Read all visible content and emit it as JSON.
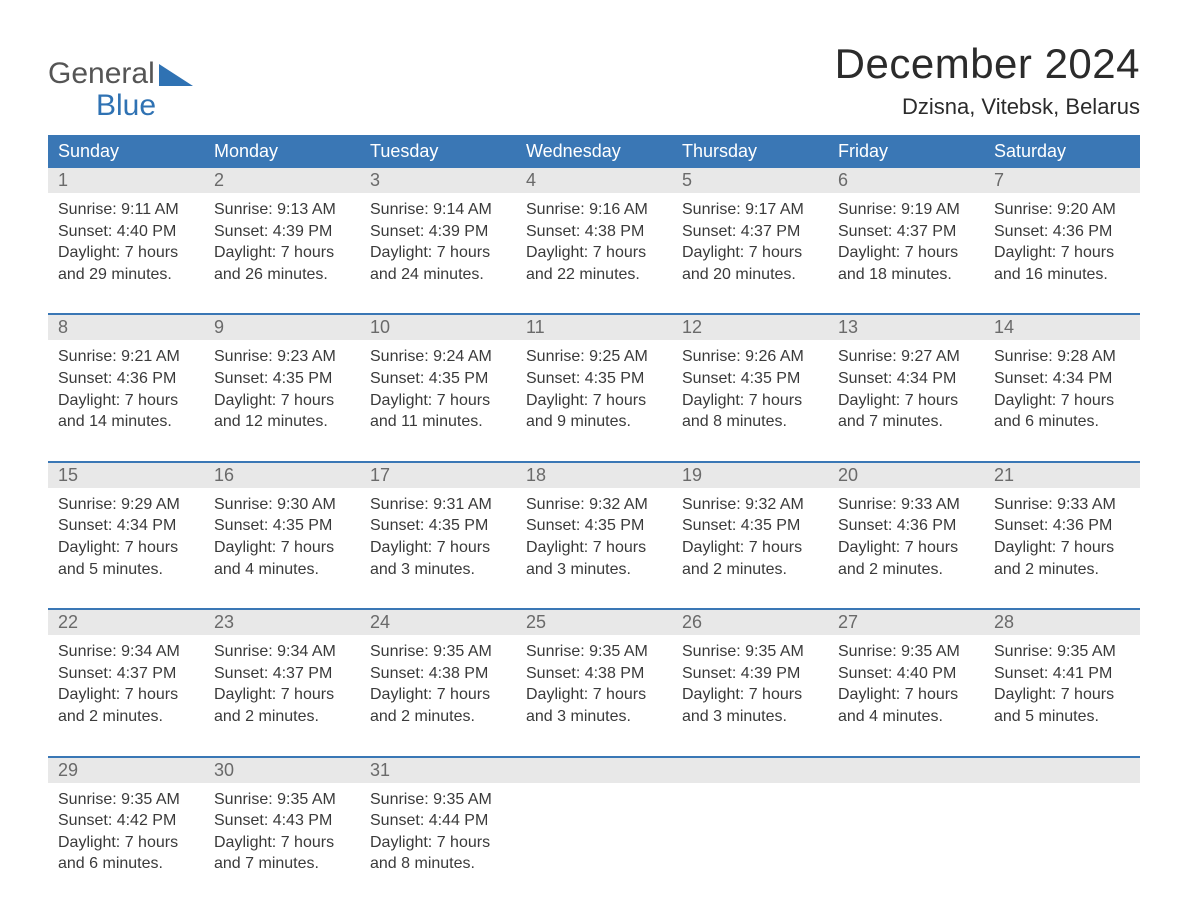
{
  "logo": {
    "line1": "General",
    "line2": "Blue"
  },
  "title": "December 2024",
  "location": "Dzisna, Vitebsk, Belarus",
  "colors": {
    "header_bg": "#3a77b5",
    "header_text": "#ffffff",
    "daynum_bg": "#e8e8e8",
    "daynum_text": "#6a6a6a",
    "body_text": "#3a3a3a",
    "rule": "#3a77b5",
    "logo_blue": "#2f72b3"
  },
  "font": {
    "family": "Arial",
    "title_size_pt": 32,
    "location_size_pt": 17,
    "dow_size_pt": 14,
    "body_size_pt": 12
  },
  "days_of_week": [
    "Sunday",
    "Monday",
    "Tuesday",
    "Wednesday",
    "Thursday",
    "Friday",
    "Saturday"
  ],
  "weeks": [
    [
      {
        "n": "1",
        "sunrise": "Sunrise: 9:11 AM",
        "sunset": "Sunset: 4:40 PM",
        "d1": "Daylight: 7 hours",
        "d2": "and 29 minutes."
      },
      {
        "n": "2",
        "sunrise": "Sunrise: 9:13 AM",
        "sunset": "Sunset: 4:39 PM",
        "d1": "Daylight: 7 hours",
        "d2": "and 26 minutes."
      },
      {
        "n": "3",
        "sunrise": "Sunrise: 9:14 AM",
        "sunset": "Sunset: 4:39 PM",
        "d1": "Daylight: 7 hours",
        "d2": "and 24 minutes."
      },
      {
        "n": "4",
        "sunrise": "Sunrise: 9:16 AM",
        "sunset": "Sunset: 4:38 PM",
        "d1": "Daylight: 7 hours",
        "d2": "and 22 minutes."
      },
      {
        "n": "5",
        "sunrise": "Sunrise: 9:17 AM",
        "sunset": "Sunset: 4:37 PM",
        "d1": "Daylight: 7 hours",
        "d2": "and 20 minutes."
      },
      {
        "n": "6",
        "sunrise": "Sunrise: 9:19 AM",
        "sunset": "Sunset: 4:37 PM",
        "d1": "Daylight: 7 hours",
        "d2": "and 18 minutes."
      },
      {
        "n": "7",
        "sunrise": "Sunrise: 9:20 AM",
        "sunset": "Sunset: 4:36 PM",
        "d1": "Daylight: 7 hours",
        "d2": "and 16 minutes."
      }
    ],
    [
      {
        "n": "8",
        "sunrise": "Sunrise: 9:21 AM",
        "sunset": "Sunset: 4:36 PM",
        "d1": "Daylight: 7 hours",
        "d2": "and 14 minutes."
      },
      {
        "n": "9",
        "sunrise": "Sunrise: 9:23 AM",
        "sunset": "Sunset: 4:35 PM",
        "d1": "Daylight: 7 hours",
        "d2": "and 12 minutes."
      },
      {
        "n": "10",
        "sunrise": "Sunrise: 9:24 AM",
        "sunset": "Sunset: 4:35 PM",
        "d1": "Daylight: 7 hours",
        "d2": "and 11 minutes."
      },
      {
        "n": "11",
        "sunrise": "Sunrise: 9:25 AM",
        "sunset": "Sunset: 4:35 PM",
        "d1": "Daylight: 7 hours",
        "d2": "and 9 minutes."
      },
      {
        "n": "12",
        "sunrise": "Sunrise: 9:26 AM",
        "sunset": "Sunset: 4:35 PM",
        "d1": "Daylight: 7 hours",
        "d2": "and 8 minutes."
      },
      {
        "n": "13",
        "sunrise": "Sunrise: 9:27 AM",
        "sunset": "Sunset: 4:34 PM",
        "d1": "Daylight: 7 hours",
        "d2": "and 7 minutes."
      },
      {
        "n": "14",
        "sunrise": "Sunrise: 9:28 AM",
        "sunset": "Sunset: 4:34 PM",
        "d1": "Daylight: 7 hours",
        "d2": "and 6 minutes."
      }
    ],
    [
      {
        "n": "15",
        "sunrise": "Sunrise: 9:29 AM",
        "sunset": "Sunset: 4:34 PM",
        "d1": "Daylight: 7 hours",
        "d2": "and 5 minutes."
      },
      {
        "n": "16",
        "sunrise": "Sunrise: 9:30 AM",
        "sunset": "Sunset: 4:35 PM",
        "d1": "Daylight: 7 hours",
        "d2": "and 4 minutes."
      },
      {
        "n": "17",
        "sunrise": "Sunrise: 9:31 AM",
        "sunset": "Sunset: 4:35 PM",
        "d1": "Daylight: 7 hours",
        "d2": "and 3 minutes."
      },
      {
        "n": "18",
        "sunrise": "Sunrise: 9:32 AM",
        "sunset": "Sunset: 4:35 PM",
        "d1": "Daylight: 7 hours",
        "d2": "and 3 minutes."
      },
      {
        "n": "19",
        "sunrise": "Sunrise: 9:32 AM",
        "sunset": "Sunset: 4:35 PM",
        "d1": "Daylight: 7 hours",
        "d2": "and 2 minutes."
      },
      {
        "n": "20",
        "sunrise": "Sunrise: 9:33 AM",
        "sunset": "Sunset: 4:36 PM",
        "d1": "Daylight: 7 hours",
        "d2": "and 2 minutes."
      },
      {
        "n": "21",
        "sunrise": "Sunrise: 9:33 AM",
        "sunset": "Sunset: 4:36 PM",
        "d1": "Daylight: 7 hours",
        "d2": "and 2 minutes."
      }
    ],
    [
      {
        "n": "22",
        "sunrise": "Sunrise: 9:34 AM",
        "sunset": "Sunset: 4:37 PM",
        "d1": "Daylight: 7 hours",
        "d2": "and 2 minutes."
      },
      {
        "n": "23",
        "sunrise": "Sunrise: 9:34 AM",
        "sunset": "Sunset: 4:37 PM",
        "d1": "Daylight: 7 hours",
        "d2": "and 2 minutes."
      },
      {
        "n": "24",
        "sunrise": "Sunrise: 9:35 AM",
        "sunset": "Sunset: 4:38 PM",
        "d1": "Daylight: 7 hours",
        "d2": "and 2 minutes."
      },
      {
        "n": "25",
        "sunrise": "Sunrise: 9:35 AM",
        "sunset": "Sunset: 4:38 PM",
        "d1": "Daylight: 7 hours",
        "d2": "and 3 minutes."
      },
      {
        "n": "26",
        "sunrise": "Sunrise: 9:35 AM",
        "sunset": "Sunset: 4:39 PM",
        "d1": "Daylight: 7 hours",
        "d2": "and 3 minutes."
      },
      {
        "n": "27",
        "sunrise": "Sunrise: 9:35 AM",
        "sunset": "Sunset: 4:40 PM",
        "d1": "Daylight: 7 hours",
        "d2": "and 4 minutes."
      },
      {
        "n": "28",
        "sunrise": "Sunrise: 9:35 AM",
        "sunset": "Sunset: 4:41 PM",
        "d1": "Daylight: 7 hours",
        "d2": "and 5 minutes."
      }
    ],
    [
      {
        "n": "29",
        "sunrise": "Sunrise: 9:35 AM",
        "sunset": "Sunset: 4:42 PM",
        "d1": "Daylight: 7 hours",
        "d2": "and 6 minutes."
      },
      {
        "n": "30",
        "sunrise": "Sunrise: 9:35 AM",
        "sunset": "Sunset: 4:43 PM",
        "d1": "Daylight: 7 hours",
        "d2": "and 7 minutes."
      },
      {
        "n": "31",
        "sunrise": "Sunrise: 9:35 AM",
        "sunset": "Sunset: 4:44 PM",
        "d1": "Daylight: 7 hours",
        "d2": "and 8 minutes."
      },
      {
        "n": "",
        "sunrise": "",
        "sunset": "",
        "d1": "",
        "d2": ""
      },
      {
        "n": "",
        "sunrise": "",
        "sunset": "",
        "d1": "",
        "d2": ""
      },
      {
        "n": "",
        "sunrise": "",
        "sunset": "",
        "d1": "",
        "d2": ""
      },
      {
        "n": "",
        "sunrise": "",
        "sunset": "",
        "d1": "",
        "d2": ""
      }
    ]
  ]
}
